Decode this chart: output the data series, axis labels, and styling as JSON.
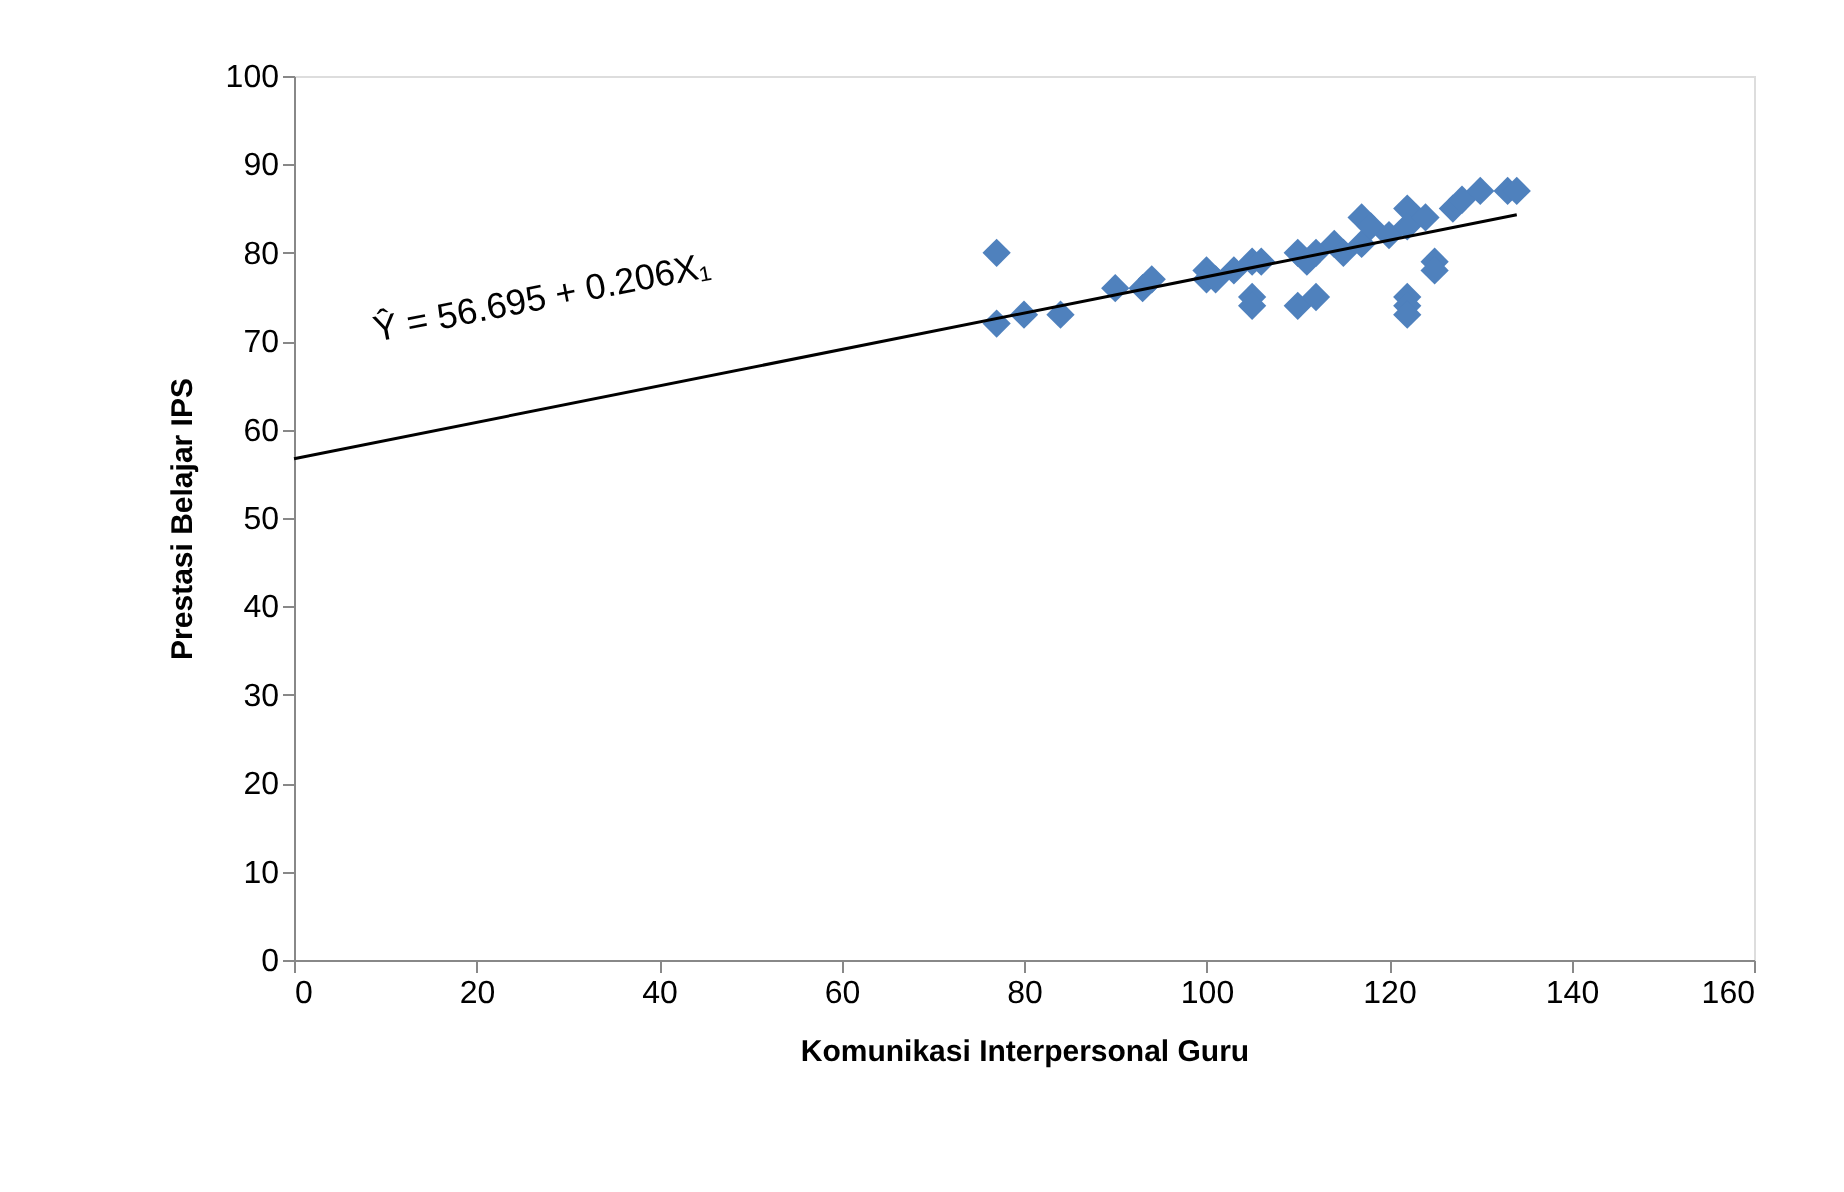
{
  "chart_data": {
    "type": "scatter",
    "xlabel": "Komunikasi Interpersonal Guru",
    "ylabel": "Prestasi Belajar IPS",
    "xlim": [
      0,
      160
    ],
    "xticks": [
      0,
      20,
      40,
      60,
      80,
      100,
      120,
      140,
      160
    ],
    "ylim": [
      0,
      100
    ],
    "yticks": [
      0,
      10,
      20,
      30,
      40,
      50,
      60,
      70,
      80,
      90,
      100
    ],
    "grid": false,
    "series": [
      {
        "color": "#4f81bd",
        "marker": "diamond",
        "x": [
          77,
          77,
          80,
          84,
          90,
          93,
          94,
          100,
          100,
          101,
          103,
          105,
          105,
          105,
          106,
          110,
          110,
          111,
          112,
          112,
          114,
          115,
          117,
          117,
          118,
          120,
          122,
          122,
          122,
          122,
          122,
          124,
          125,
          125,
          127,
          128,
          130,
          133,
          134
        ],
        "values": [
          80,
          72,
          73,
          73,
          76,
          76,
          77,
          78,
          77,
          77,
          78,
          79,
          75,
          74,
          79,
          80,
          74,
          79,
          75,
          80,
          81,
          80,
          84,
          81,
          83,
          82,
          85,
          83,
          75,
          74,
          73,
          84,
          79,
          78,
          85,
          86,
          87,
          87,
          87
        ]
      },
      {
        "type": "line",
        "color": "#000000",
        "x": [
          0,
          134
        ],
        "values": [
          56.7,
          84.3
        ]
      }
    ],
    "annotations": [
      "Ŷ = 56.695 + 0.206X₁"
    ]
  }
}
